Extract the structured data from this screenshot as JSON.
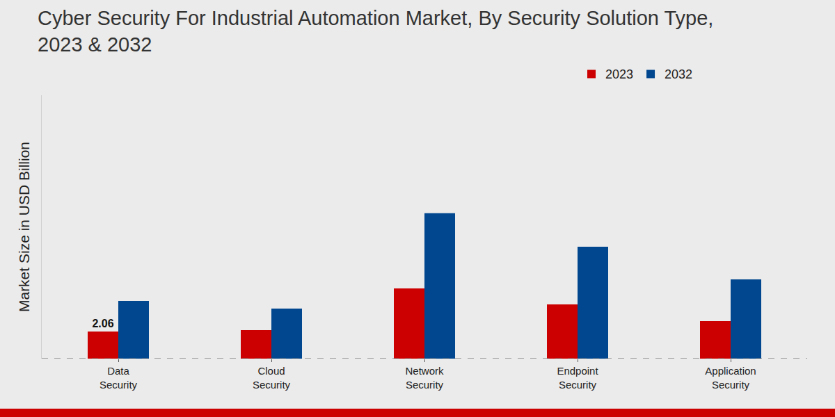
{
  "chart_data": {
    "type": "bar",
    "title": "Cyber Security For Industrial Automation Market, By Security Solution Type,\n2023 & 2032",
    "y_label": "Market Size in USD Billion",
    "categories": [
      "Data Security",
      "Cloud Security",
      "Network Security",
      "Endpoint Security",
      "Application Security"
    ],
    "series": [
      {
        "name": "2023",
        "color": "#cc0000",
        "values": [
          2.06,
          2.17,
          5.33,
          4.12,
          2.85
        ],
        "value_labels": [
          "2.06",
          null,
          null,
          null,
          null
        ]
      },
      {
        "name": "2032",
        "color": "#00478f",
        "values": [
          4.38,
          3.8,
          11.04,
          8.5,
          6.02
        ]
      }
    ],
    "ylim": [
      0,
      20
    ],
    "grid": false,
    "legend": "top right",
    "tick_labels": "x"
  }
}
